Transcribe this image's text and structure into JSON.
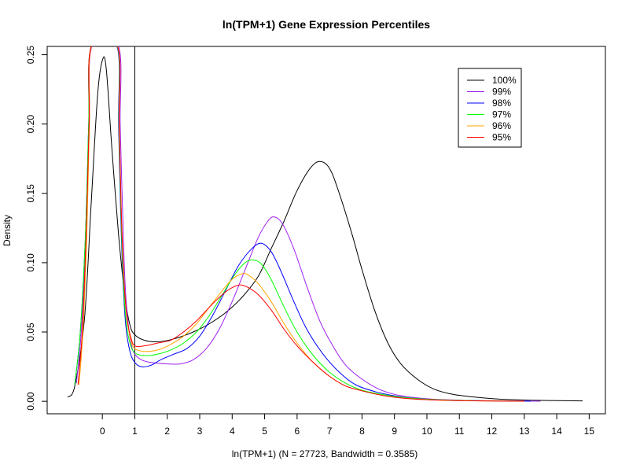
{
  "chart_data": {
    "type": "line",
    "title": "ln(TPM+1) Gene Expression Percentiles",
    "xlabel": "ln(TPM+1) (N = 27723, Bandwidth = 0.3585)",
    "ylabel": "Density",
    "xlim": [
      -1.7,
      15.5
    ],
    "ylim": [
      -0.009,
      0.256
    ],
    "x_ticks": [
      0,
      1,
      2,
      3,
      4,
      5,
      6,
      7,
      8,
      9,
      10,
      11,
      12,
      13,
      14,
      15
    ],
    "y_ticks": [
      0.0,
      0.05,
      0.1,
      0.15,
      0.2,
      0.25
    ],
    "y_tick_labels": [
      "0.00",
      "0.05",
      "0.10",
      "0.15",
      "0.20",
      "0.25"
    ],
    "vline_x": 1,
    "grid": false,
    "legend_position": "top-right",
    "series": [
      {
        "name": "100%",
        "color": "#000000",
        "points": [
          [
            -1.07,
            0.003
          ],
          [
            -0.85,
            0.011
          ],
          [
            -0.55,
            0.06
          ],
          [
            -0.35,
            0.14
          ],
          [
            -0.15,
            0.22
          ],
          [
            0.0,
            0.246
          ],
          [
            0.12,
            0.24
          ],
          [
            0.3,
            0.18
          ],
          [
            0.5,
            0.12
          ],
          [
            0.7,
            0.075
          ],
          [
            0.85,
            0.055
          ],
          [
            1.0,
            0.048
          ],
          [
            1.3,
            0.044
          ],
          [
            1.7,
            0.043
          ],
          [
            2.2,
            0.045
          ],
          [
            2.8,
            0.05
          ],
          [
            3.3,
            0.056
          ],
          [
            3.8,
            0.064
          ],
          [
            4.3,
            0.075
          ],
          [
            4.8,
            0.09
          ],
          [
            5.2,
            0.11
          ],
          [
            5.6,
            0.13
          ],
          [
            6.0,
            0.152
          ],
          [
            6.4,
            0.168
          ],
          [
            6.7,
            0.173
          ],
          [
            7.0,
            0.168
          ],
          [
            7.3,
            0.15
          ],
          [
            7.7,
            0.12
          ],
          [
            8.0,
            0.095
          ],
          [
            8.4,
            0.065
          ],
          [
            8.8,
            0.042
          ],
          [
            9.2,
            0.027
          ],
          [
            9.7,
            0.016
          ],
          [
            10.2,
            0.009
          ],
          [
            10.8,
            0.005
          ],
          [
            11.5,
            0.003
          ],
          [
            12.3,
            0.0015
          ],
          [
            13.2,
            0.0008
          ],
          [
            14.0,
            0.0005
          ],
          [
            14.8,
            0.0003
          ]
        ]
      },
      {
        "name": "99%",
        "color": "#a020f0",
        "points": [
          [
            -0.8,
            0.013
          ],
          [
            -0.65,
            0.05
          ],
          [
            -0.5,
            0.12
          ],
          [
            -0.4,
            0.2
          ],
          [
            -0.32,
            0.256
          ],
          [
            0.5,
            0.256
          ],
          [
            0.55,
            0.2
          ],
          [
            0.62,
            0.14
          ],
          [
            0.7,
            0.085
          ],
          [
            0.8,
            0.055
          ],
          [
            0.9,
            0.04
          ],
          [
            1.0,
            0.034
          ],
          [
            1.2,
            0.03
          ],
          [
            1.5,
            0.028
          ],
          [
            2.0,
            0.027
          ],
          [
            2.4,
            0.027
          ],
          [
            2.8,
            0.03
          ],
          [
            3.2,
            0.038
          ],
          [
            3.6,
            0.052
          ],
          [
            4.0,
            0.072
          ],
          [
            4.4,
            0.095
          ],
          [
            4.8,
            0.118
          ],
          [
            5.1,
            0.13
          ],
          [
            5.3,
            0.133
          ],
          [
            5.55,
            0.128
          ],
          [
            5.9,
            0.11
          ],
          [
            6.3,
            0.083
          ],
          [
            6.7,
            0.058
          ],
          [
            7.1,
            0.04
          ],
          [
            7.5,
            0.026
          ],
          [
            8.0,
            0.016
          ],
          [
            8.5,
            0.009
          ],
          [
            9.0,
            0.005
          ],
          [
            9.5,
            0.003
          ],
          [
            10.2,
            0.0015
          ],
          [
            11.0,
            0.0008
          ],
          [
            12.0,
            0.0004
          ],
          [
            13.0,
            0.0002
          ],
          [
            13.5,
            0.0001
          ]
        ]
      },
      {
        "name": "98%",
        "color": "#0000ff",
        "points": [
          [
            -0.85,
            0.012
          ],
          [
            -0.68,
            0.05
          ],
          [
            -0.52,
            0.12
          ],
          [
            -0.42,
            0.2
          ],
          [
            -0.34,
            0.256
          ],
          [
            0.45,
            0.256
          ],
          [
            0.5,
            0.2
          ],
          [
            0.56,
            0.14
          ],
          [
            0.63,
            0.09
          ],
          [
            0.72,
            0.055
          ],
          [
            0.85,
            0.036
          ],
          [
            1.0,
            0.028
          ],
          [
            1.2,
            0.025
          ],
          [
            1.5,
            0.026
          ],
          [
            1.8,
            0.03
          ],
          [
            2.2,
            0.034
          ],
          [
            2.6,
            0.038
          ],
          [
            3.0,
            0.047
          ],
          [
            3.4,
            0.062
          ],
          [
            3.8,
            0.08
          ],
          [
            4.2,
            0.098
          ],
          [
            4.6,
            0.11
          ],
          [
            4.9,
            0.114
          ],
          [
            5.2,
            0.108
          ],
          [
            5.5,
            0.094
          ],
          [
            5.9,
            0.072
          ],
          [
            6.3,
            0.052
          ],
          [
            6.8,
            0.034
          ],
          [
            7.3,
            0.021
          ],
          [
            7.8,
            0.012
          ],
          [
            8.4,
            0.007
          ],
          [
            9.0,
            0.004
          ],
          [
            9.7,
            0.002
          ],
          [
            10.5,
            0.001
          ],
          [
            11.5,
            0.0005
          ],
          [
            12.5,
            0.0002
          ],
          [
            13.2,
            0.0001
          ]
        ]
      },
      {
        "name": "97%",
        "color": "#00ff00",
        "points": [
          [
            -0.85,
            0.012
          ],
          [
            -0.68,
            0.05
          ],
          [
            -0.52,
            0.12
          ],
          [
            -0.42,
            0.2
          ],
          [
            -0.34,
            0.256
          ],
          [
            0.46,
            0.256
          ],
          [
            0.51,
            0.2
          ],
          [
            0.57,
            0.14
          ],
          [
            0.64,
            0.09
          ],
          [
            0.73,
            0.058
          ],
          [
            0.85,
            0.042
          ],
          [
            1.0,
            0.035
          ],
          [
            1.3,
            0.033
          ],
          [
            1.7,
            0.034
          ],
          [
            2.1,
            0.037
          ],
          [
            2.5,
            0.042
          ],
          [
            2.9,
            0.05
          ],
          [
            3.3,
            0.062
          ],
          [
            3.7,
            0.077
          ],
          [
            4.1,
            0.092
          ],
          [
            4.4,
            0.1
          ],
          [
            4.65,
            0.102
          ],
          [
            4.9,
            0.099
          ],
          [
            5.2,
            0.088
          ],
          [
            5.6,
            0.068
          ],
          [
            6.0,
            0.05
          ],
          [
            6.5,
            0.033
          ],
          [
            7.0,
            0.021
          ],
          [
            7.5,
            0.013
          ],
          [
            8.0,
            0.008
          ],
          [
            8.6,
            0.005
          ],
          [
            9.2,
            0.003
          ],
          [
            10.0,
            0.0015
          ],
          [
            11.0,
            0.0007
          ],
          [
            12.0,
            0.0003
          ],
          [
            13.0,
            0.0001
          ]
        ]
      },
      {
        "name": "96%",
        "color": "#ffa500",
        "points": [
          [
            -0.72,
            0.012
          ],
          [
            -0.6,
            0.05
          ],
          [
            -0.48,
            0.12
          ],
          [
            -0.4,
            0.2
          ],
          [
            -0.33,
            0.256
          ],
          [
            0.47,
            0.256
          ],
          [
            0.52,
            0.2
          ],
          [
            0.58,
            0.14
          ],
          [
            0.66,
            0.09
          ],
          [
            0.76,
            0.06
          ],
          [
            0.88,
            0.044
          ],
          [
            1.0,
            0.038
          ],
          [
            1.3,
            0.036
          ],
          [
            1.7,
            0.037
          ],
          [
            2.1,
            0.041
          ],
          [
            2.5,
            0.047
          ],
          [
            2.9,
            0.056
          ],
          [
            3.3,
            0.068
          ],
          [
            3.7,
            0.08
          ],
          [
            4.0,
            0.088
          ],
          [
            4.3,
            0.092
          ],
          [
            4.5,
            0.091
          ],
          [
            4.8,
            0.085
          ],
          [
            5.2,
            0.072
          ],
          [
            5.6,
            0.056
          ],
          [
            6.0,
            0.042
          ],
          [
            6.5,
            0.028
          ],
          [
            7.0,
            0.018
          ],
          [
            7.5,
            0.011
          ],
          [
            8.1,
            0.007
          ],
          [
            8.7,
            0.004
          ],
          [
            9.4,
            0.002
          ],
          [
            10.2,
            0.001
          ],
          [
            11.0,
            0.0005
          ],
          [
            12.0,
            0.0002
          ],
          [
            13.0,
            0.0001
          ]
        ]
      },
      {
        "name": "95%",
        "color": "#ff0000",
        "points": [
          [
            -0.75,
            0.012
          ],
          [
            -0.62,
            0.05
          ],
          [
            -0.5,
            0.12
          ],
          [
            -0.41,
            0.2
          ],
          [
            -0.34,
            0.256
          ],
          [
            0.47,
            0.256
          ],
          [
            0.52,
            0.2
          ],
          [
            0.58,
            0.14
          ],
          [
            0.66,
            0.09
          ],
          [
            0.76,
            0.06
          ],
          [
            0.88,
            0.046
          ],
          [
            1.0,
            0.04
          ],
          [
            1.3,
            0.04
          ],
          [
            1.7,
            0.042
          ],
          [
            2.1,
            0.044
          ],
          [
            2.5,
            0.05
          ],
          [
            2.9,
            0.058
          ],
          [
            3.3,
            0.068
          ],
          [
            3.7,
            0.077
          ],
          [
            4.0,
            0.082
          ],
          [
            4.25,
            0.084
          ],
          [
            4.5,
            0.082
          ],
          [
            4.8,
            0.077
          ],
          [
            5.2,
            0.066
          ],
          [
            5.6,
            0.052
          ],
          [
            6.0,
            0.04
          ],
          [
            6.5,
            0.028
          ],
          [
            7.0,
            0.018
          ],
          [
            7.5,
            0.011
          ],
          [
            8.1,
            0.007
          ],
          [
            8.7,
            0.004
          ],
          [
            9.4,
            0.002
          ],
          [
            10.2,
            0.001
          ],
          [
            11.0,
            0.0005
          ],
          [
            12.0,
            0.0002
          ],
          [
            13.0,
            0.0001
          ]
        ]
      }
    ]
  }
}
